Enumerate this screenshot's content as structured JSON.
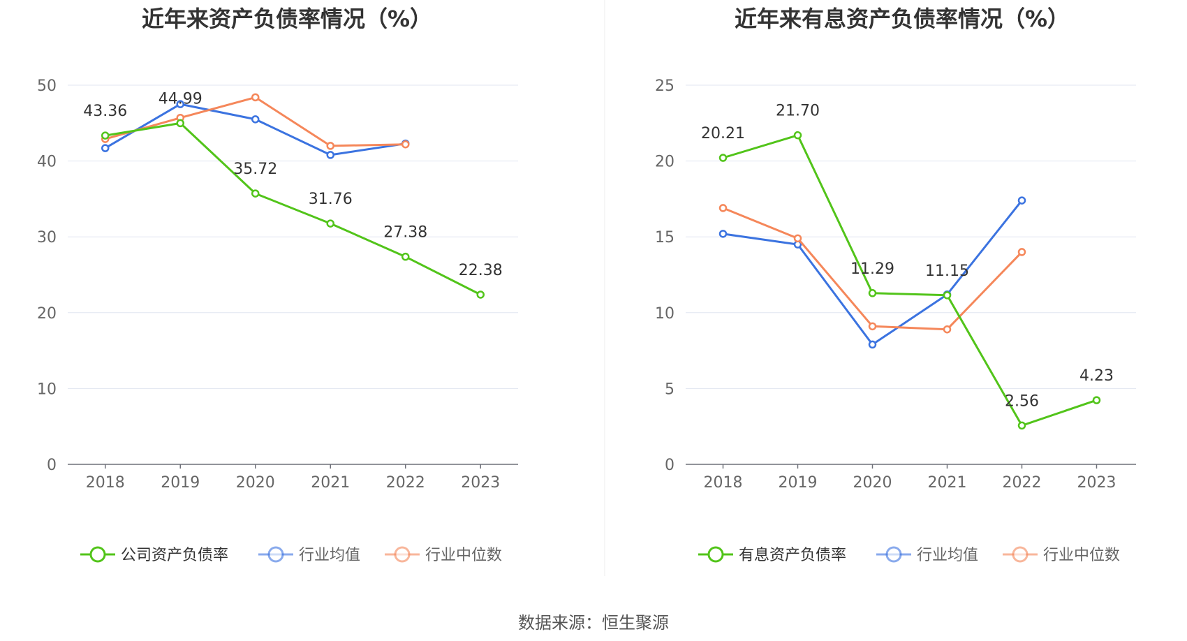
{
  "source": "数据来源：恒生聚源",
  "chart_data": [
    {
      "type": "line",
      "title": "近年来资产负债率情况（%）",
      "x": [
        "2018",
        "2019",
        "2020",
        "2021",
        "2022",
        "2023"
      ],
      "ylim": [
        0,
        50
      ],
      "yticks": [
        0,
        10,
        20,
        30,
        40,
        50
      ],
      "grid": true,
      "legend_position": "bottom",
      "series": [
        {
          "name": "公司资产负债率",
          "color": "#52c41a",
          "values": [
            43.36,
            44.99,
            35.72,
            31.76,
            27.38,
            22.38
          ],
          "labels": [
            "43.36",
            "44.99",
            "35.72",
            "31.76",
            "27.38",
            "22.38"
          ]
        },
        {
          "name": "行业均值",
          "color": "#3b73e0",
          "values": [
            41.7,
            47.5,
            45.5,
            40.8,
            42.3,
            null
          ]
        },
        {
          "name": "行业中位数",
          "color": "#f5875a",
          "values": [
            42.9,
            45.7,
            48.4,
            42.0,
            42.2,
            null
          ]
        }
      ]
    },
    {
      "type": "line",
      "title": "近年来有息资产负债率情况（%）",
      "x": [
        "2018",
        "2019",
        "2020",
        "2021",
        "2022",
        "2023"
      ],
      "ylim": [
        0,
        25
      ],
      "yticks": [
        0,
        5,
        10,
        15,
        20,
        25
      ],
      "grid": true,
      "legend_position": "bottom",
      "series": [
        {
          "name": "有息资产负债率",
          "color": "#52c41a",
          "values": [
            20.21,
            21.7,
            11.29,
            11.15,
            2.56,
            4.23
          ],
          "labels": [
            "20.21",
            "21.70",
            "11.29",
            "11.15",
            "2.56",
            "4.23"
          ]
        },
        {
          "name": "行业均值",
          "color": "#3b73e0",
          "values": [
            15.2,
            14.5,
            7.9,
            11.2,
            17.4,
            null
          ]
        },
        {
          "name": "行业中位数",
          "color": "#f5875a",
          "values": [
            16.9,
            14.9,
            9.1,
            8.9,
            14.0,
            null
          ]
        }
      ]
    }
  ]
}
